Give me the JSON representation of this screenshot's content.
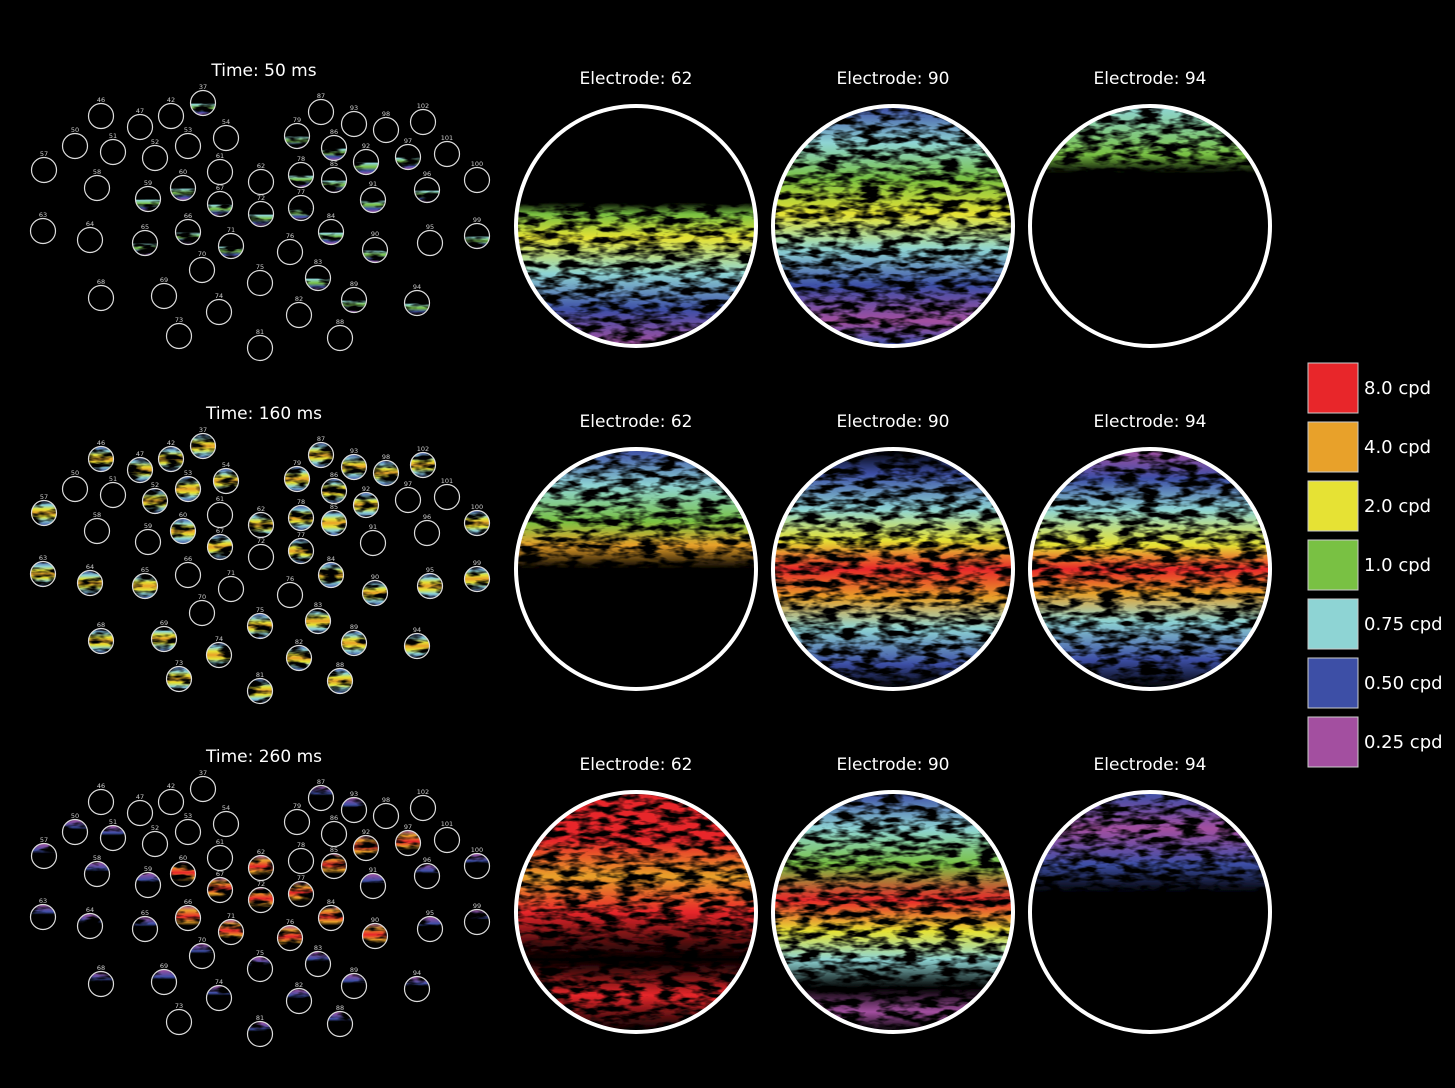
{
  "rows": [
    {
      "time": "Time: 50 ms",
      "electrodes": [
        "Electrode: 62",
        "Electrode: 90",
        "Electrode: 94"
      ]
    },
    {
      "time": "Time: 160 ms",
      "electrodes": [
        "Electrode: 62",
        "Electrode: 90",
        "Electrode: 94"
      ]
    },
    {
      "time": "Time: 260 ms",
      "electrodes": [
        "Electrode: 62",
        "Electrode: 90",
        "Electrode: 94"
      ]
    }
  ],
  "electrode_numbers": [
    "37",
    "42",
    "46",
    "47",
    "50",
    "51",
    "52",
    "53",
    "54",
    "57",
    "58",
    "59",
    "60",
    "61",
    "62",
    "63",
    "64",
    "65",
    "66",
    "67",
    "68",
    "69",
    "70",
    "71",
    "72",
    "73",
    "74",
    "75",
    "76",
    "77",
    "78",
    "79",
    "81",
    "82",
    "83",
    "84",
    "85",
    "86",
    "87",
    "88",
    "89",
    "90",
    "91",
    "92",
    "93",
    "94",
    "95",
    "96",
    "97",
    "98",
    "99",
    "100",
    "101",
    "102"
  ],
  "legend": [
    {
      "label": "8.0 cpd",
      "color": "#e8262a"
    },
    {
      "label": "4.0 cpd",
      "color": "#e8a12a"
    },
    {
      "label": "2.0 cpd",
      "color": "#e6e234"
    },
    {
      "label": "1.0 cpd",
      "color": "#79c143"
    },
    {
      "label": "0.75 cpd",
      "color": "#8ed4d4"
    },
    {
      "label": "0.50 cpd",
      "color": "#3d4fa6"
    },
    {
      "label": "0.25 cpd",
      "color": "#a34fa0"
    }
  ]
}
